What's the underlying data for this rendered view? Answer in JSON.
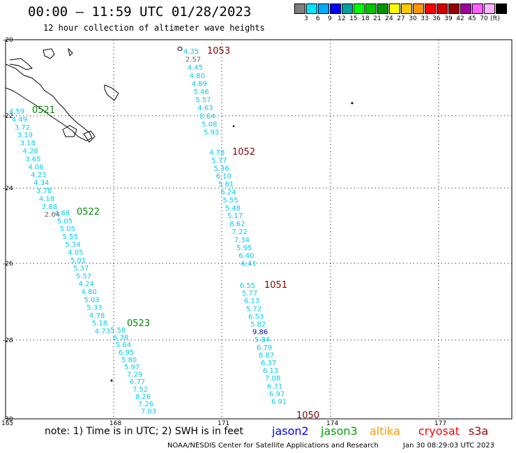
{
  "header": {
    "title": "00:00 – 11:59 UTC 01/28/2023",
    "subtitle": "12 hour collection of altimeter wave heights"
  },
  "legend": {
    "unit": "(ft)",
    "items": [
      {
        "color": "#7f7f7f",
        "label": ""
      },
      {
        "color": "#00e5ff",
        "label": "3"
      },
      {
        "color": "#00aaff",
        "label": "6"
      },
      {
        "color": "#0000ff",
        "label": "9"
      },
      {
        "color": "#00a0a0",
        "label": "12"
      },
      {
        "color": "#00ff00",
        "label": "15"
      },
      {
        "color": "#00c800",
        "label": "18"
      },
      {
        "color": "#009600",
        "label": "21"
      },
      {
        "color": "#ffff00",
        "label": "24"
      },
      {
        "color": "#ffc800",
        "label": "27"
      },
      {
        "color": "#ff9600",
        "label": "30"
      },
      {
        "color": "#ff0000",
        "label": "33"
      },
      {
        "color": "#d20000",
        "label": "36"
      },
      {
        "color": "#960000",
        "label": "39"
      },
      {
        "color": "#a000a0",
        "label": "42"
      },
      {
        "color": "#ff60ff",
        "label": "45"
      },
      {
        "color": "#ffb4ff",
        "label": "70"
      },
      {
        "color": "#000000",
        "label": ""
      }
    ]
  },
  "axes": {
    "lat_labels": [
      "-20",
      "-22",
      "-24",
      "-26",
      "-28",
      "-30"
    ],
    "lon_labels": [
      "165",
      "168",
      "171",
      "174",
      "177"
    ]
  },
  "tracks": {
    "0521": {
      "label": "0521",
      "values": [
        "4.59",
        "4.49",
        "3.72",
        "3.19",
        "3.18",
        "4.28",
        "3.65",
        "4.06",
        "4.23",
        "4.34",
        "3.78",
        "4.18",
        "3.88",
        "2.64"
      ]
    },
    "0522": {
      "label": "0522",
      "values": [
        "4.68",
        "5.05",
        "5.05",
        "5.55",
        "5.34",
        "4.05",
        "5.01",
        "5.37",
        "5.57",
        "4.24",
        "4.80",
        "5.03",
        "5.33",
        "4.78",
        "5.18",
        "4.73"
      ]
    },
    "0523": {
      "label": "0523",
      "values": [
        "5.58",
        "6.38",
        "5.64",
        "6.95",
        "5.80",
        "5.97",
        "7.29",
        "6.77",
        "7.52",
        "8.26",
        "7.26",
        "7.03"
      ]
    },
    "1053": {
      "label": "1053",
      "values": [
        "4.35",
        "2.57",
        "4.45",
        "4.80",
        "4.89",
        "5.46",
        "5.57",
        "4.63",
        "8.64",
        "5.08",
        "5.93"
      ]
    },
    "1052": {
      "label": "1052",
      "values": [
        "4.78",
        "5.77",
        "5.36",
        "6.10",
        "5.81",
        "6.24",
        "5.55",
        "5.48",
        "5.17",
        "8.62",
        "7.22",
        "7.34",
        "5.95",
        "6.40",
        "6.41"
      ]
    },
    "1051": {
      "label": "1051",
      "values": [
        "6.55",
        "5.77",
        "6.13",
        "5.72",
        "6.53",
        "5.82",
        "9.86",
        "5.84",
        "6.79",
        "8.87",
        "6.37",
        "6.13",
        "7.08",
        "6.31",
        "6.97",
        "6.91"
      ]
    },
    "1050": {
      "label": "1050"
    }
  },
  "footer": {
    "note": "note: 1) Time is in UTC; 2) SWH is in feet",
    "satellites": [
      {
        "name": "jason2",
        "color": "#0000ff"
      },
      {
        "name": "jason3",
        "color": "#00a000"
      },
      {
        "name": "altika",
        "color": "#ff9900"
      },
      {
        "name": "cryosat",
        "color": "#ff0000"
      },
      {
        "name": "s3a",
        "color": "#990000"
      }
    ],
    "credit": "NOAA/NESDIS Center for Satellite Applications and Research",
    "timestamp": "Jan 30 08:29:03 UTC 2023"
  }
}
